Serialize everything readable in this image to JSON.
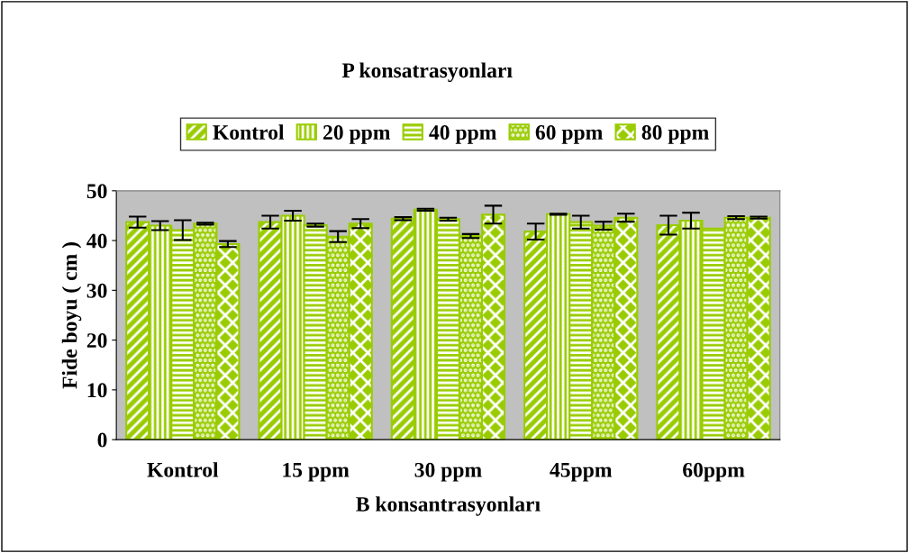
{
  "chart_data": {
    "type": "bar",
    "title": "P konsatrasyonları",
    "xlabel": "B konsantrasyonları",
    "ylabel": "Fide boyu ( cm )",
    "categories": [
      "Kontrol",
      "15 ppm",
      "30 ppm",
      "45ppm",
      "60ppm"
    ],
    "series": [
      {
        "name": "Kontrol",
        "color": "#99cc00",
        "values": [
          43.7,
          43.7,
          44.4,
          41.8,
          43.1
        ],
        "errors": [
          1.1,
          1.3,
          0.3,
          1.6,
          1.9
        ]
      },
      {
        "name": "20 ppm",
        "color": "#99cc00",
        "values": [
          43.0,
          45.0,
          46.2,
          45.3,
          44.0
        ],
        "errors": [
          0.9,
          1.0,
          0.2,
          0.1,
          1.6
        ]
      },
      {
        "name": "40 ppm",
        "color": "#99cc00",
        "values": [
          42.1,
          43.1,
          44.3,
          43.7,
          42.4
        ],
        "errors": [
          2.0,
          0.3,
          0.3,
          1.3,
          null
        ]
      },
      {
        "name": "60 ppm",
        "color": "#99cc00",
        "values": [
          43.4,
          40.8,
          40.9,
          43.0,
          44.6
        ],
        "errors": [
          0.2,
          1.1,
          0.4,
          0.8,
          0.3
        ]
      },
      {
        "name": "80 ppm",
        "color": "#99cc00",
        "values": [
          39.3,
          43.4,
          45.2,
          44.6,
          44.6
        ],
        "errors": [
          0.6,
          0.9,
          1.8,
          0.8,
          0.2
        ]
      }
    ],
    "ylim": [
      0,
      50
    ],
    "yticks": [
      0,
      10,
      20,
      30,
      40,
      50
    ],
    "grid": false,
    "legend": "top"
  }
}
